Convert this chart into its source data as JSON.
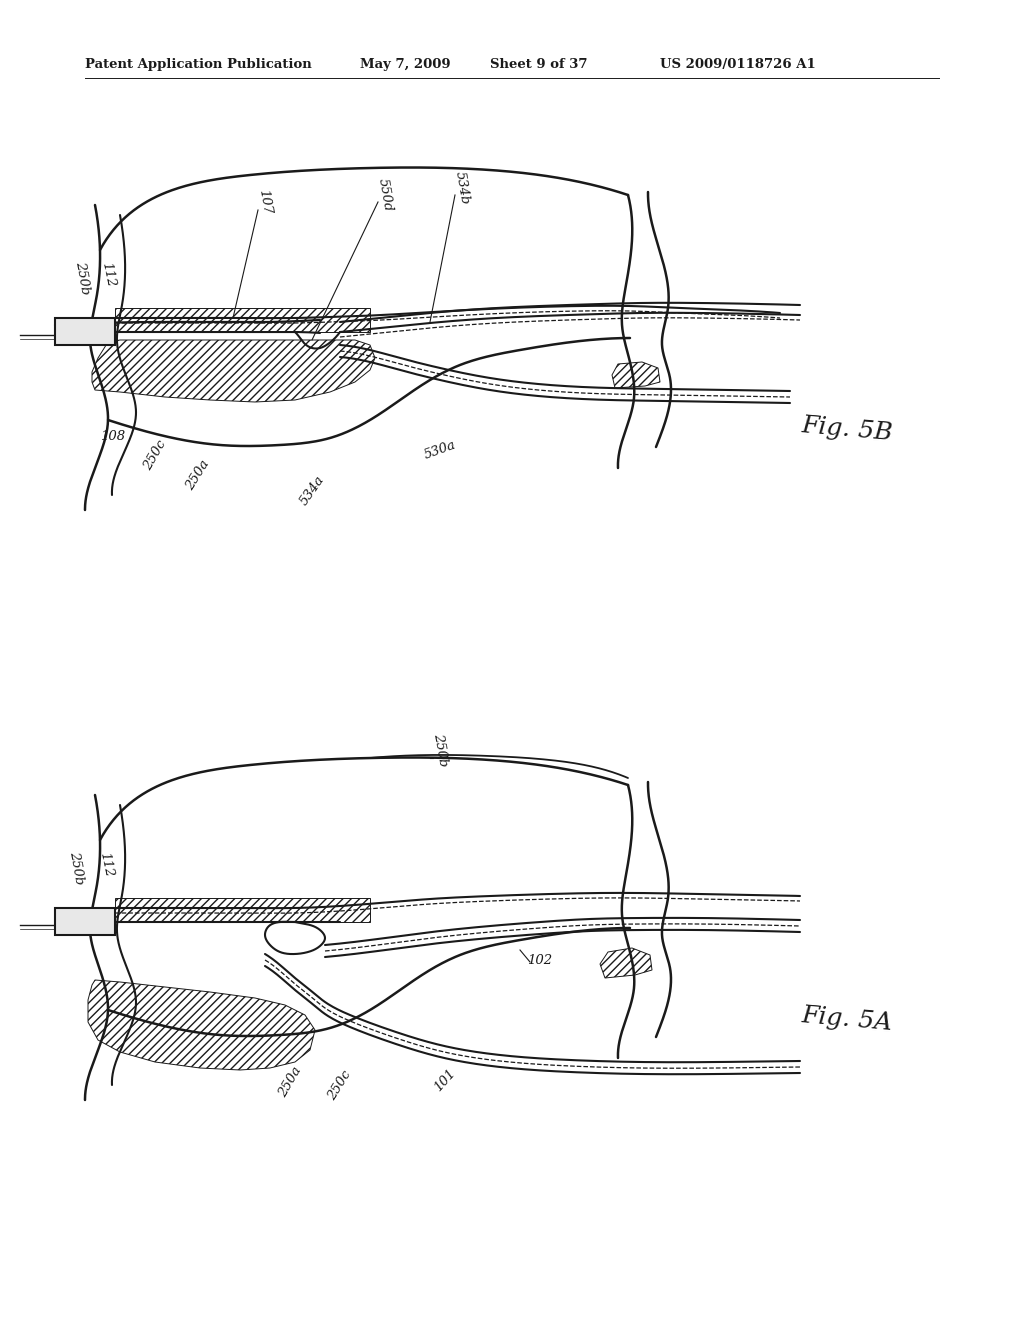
{
  "background_color": "#ffffff",
  "header_left": "Patent Application Publication",
  "header_date": "May 7, 2009",
  "header_sheet": "Sheet 9 of 37",
  "header_patent": "US 2009/0118726 A1",
  "fig5b_label": "Fig. 5B",
  "fig5a_label": "Fig. 5A",
  "lc": "#1a1a1a"
}
